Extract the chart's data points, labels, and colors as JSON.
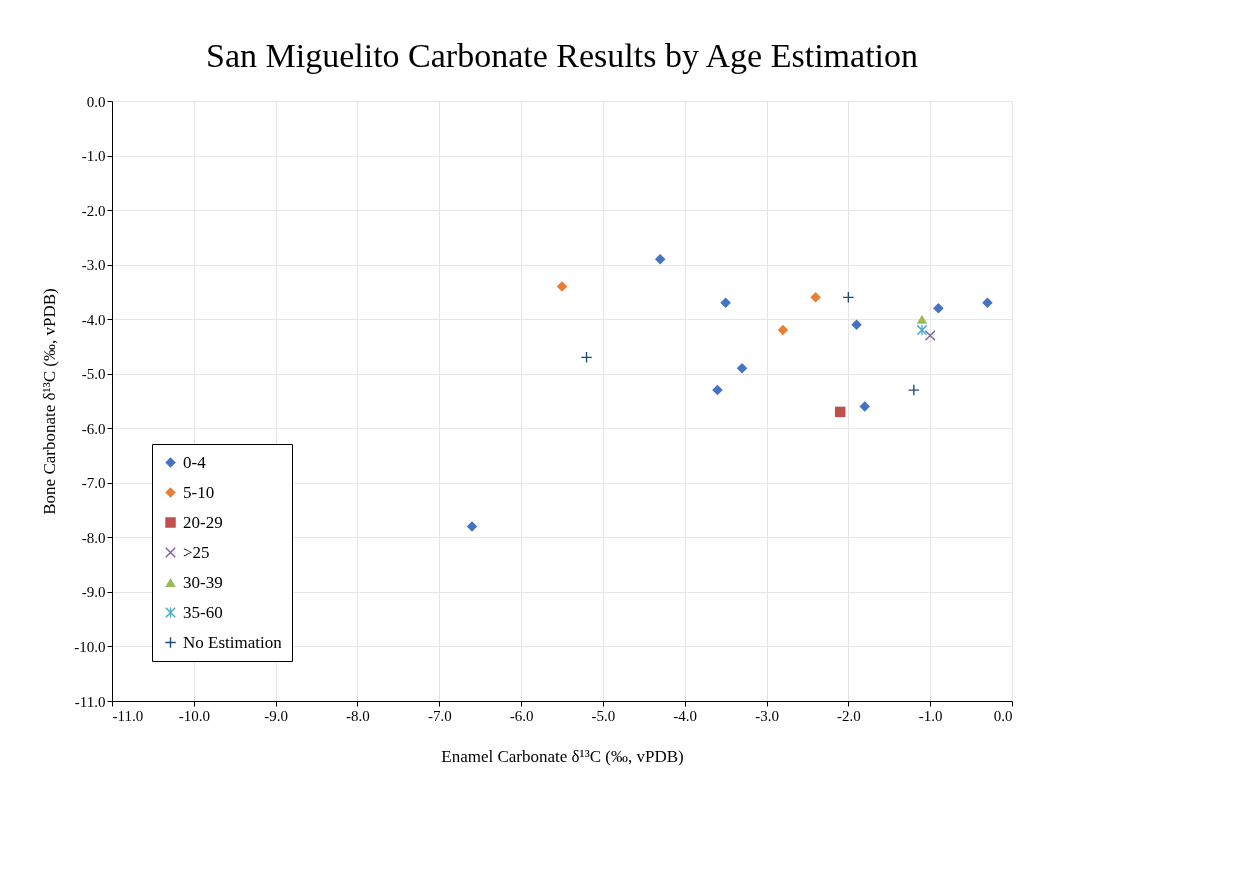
{
  "chart_data": {
    "type": "scatter",
    "title": "San Miguelito Carbonate Results by Age Estimation",
    "xlabel": "Enamel Carbonate δ¹³C (‰, vPDB)",
    "ylabel": "Bone Carbonate δ¹³C (‰, vPDB)",
    "xlim": [
      -11.0,
      0.0
    ],
    "ylim": [
      -11.0,
      0.0
    ],
    "xticks": [
      {
        "value": -11,
        "label": "-11.0"
      },
      {
        "value": -10,
        "label": "-10.0"
      },
      {
        "value": -9,
        "label": "-9.0"
      },
      {
        "value": -8,
        "label": "-8.0"
      },
      {
        "value": -7,
        "label": "-7.0"
      },
      {
        "value": -6,
        "label": "-6.0"
      },
      {
        "value": -5,
        "label": "-5.0"
      },
      {
        "value": -4,
        "label": "-4.0"
      },
      {
        "value": -3,
        "label": "-3.0"
      },
      {
        "value": -2,
        "label": "-2.0"
      },
      {
        "value": -1,
        "label": "-1.0"
      },
      {
        "value": 0,
        "label": "0.0"
      }
    ],
    "yticks": [
      {
        "value": -11,
        "label": "-11.0"
      },
      {
        "value": -10,
        "label": "-10.0"
      },
      {
        "value": -9,
        "label": "-9.0"
      },
      {
        "value": -8,
        "label": "-8.0"
      },
      {
        "value": -7,
        "label": "-7.0"
      },
      {
        "value": -6,
        "label": "-6.0"
      },
      {
        "value": -5,
        "label": "-5.0"
      },
      {
        "value": -4,
        "label": "-4.0"
      },
      {
        "value": -3,
        "label": "-3.0"
      },
      {
        "value": -2,
        "label": "-2.0"
      },
      {
        "value": -1,
        "label": "-1.0"
      },
      {
        "value": 0,
        "label": "0.0"
      }
    ],
    "grid": true,
    "legend": "bottom left",
    "series": [
      {
        "name": "0-4",
        "color": "#4472c4",
        "marker": "diamond",
        "x": [
          -6.6,
          -4.3,
          -3.5,
          -3.6,
          -3.3,
          -1.9,
          -1.8,
          -0.9,
          -0.3
        ],
        "values": [
          -7.8,
          -2.9,
          -3.7,
          -5.3,
          -4.9,
          -4.1,
          -5.6,
          -3.8,
          -3.7
        ]
      },
      {
        "name": "5-10",
        "color": "#ed7d31",
        "marker": "diamond",
        "x": [
          -5.5,
          -2.8,
          -2.4
        ],
        "values": [
          -3.4,
          -4.2,
          -3.6
        ]
      },
      {
        "name": "20-29",
        "color": "#c0504d",
        "marker": "square",
        "x": [
          -2.1
        ],
        "values": [
          -5.7
        ]
      },
      {
        "name": ">25",
        "color": "#8064a2",
        "marker": "x",
        "x": [
          -1.0
        ],
        "values": [
          -4.3
        ]
      },
      {
        "name": "30-39",
        "color": "#9bbb59",
        "marker": "triangle",
        "x": [
          -1.1
        ],
        "values": [
          -4.0
        ]
      },
      {
        "name": "35-60",
        "color": "#4bacc6",
        "x": [
          -1.1
        ],
        "values": [
          -4.2
        ]
      },
      {
        "name": "No Estimation",
        "color": "#1f497d",
        "marker": "cross",
        "x": [
          -5.2,
          -2.0,
          -1.2
        ],
        "values": [
          -4.7,
          -3.6,
          -5.3
        ]
      }
    ]
  }
}
